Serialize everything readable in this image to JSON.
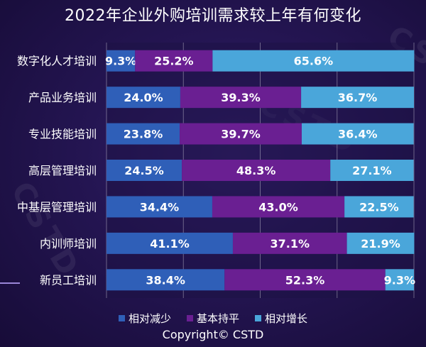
{
  "chart_data": {
    "type": "bar",
    "stacked": true,
    "orientation": "horizontal",
    "title": "2022年企业外购培训需求较上年有何变化",
    "categories": [
      "数字化人才培训",
      "产品业务培训",
      "专业技能培训",
      "高层管理培训",
      "中基层管理培训",
      "内训师培训",
      "新员工培训"
    ],
    "series": [
      {
        "name": "相对减少",
        "color": "#2f5fb8",
        "values": [
          9.3,
          24.0,
          23.8,
          24.5,
          34.4,
          41.1,
          38.4
        ]
      },
      {
        "name": "基本持平",
        "color": "#6a1f92",
        "values": [
          25.2,
          39.3,
          39.7,
          48.3,
          43.0,
          37.1,
          52.3
        ]
      },
      {
        "name": "相对增长",
        "color": "#4aa6da",
        "values": [
          65.6,
          36.7,
          36.4,
          27.1,
          22.5,
          21.9,
          9.3
        ]
      }
    ],
    "value_format": "{v}%",
    "grid": true,
    "legend": "bottom"
  },
  "copyright": "Copyright© CSTD",
  "watermark": "CSTD"
}
